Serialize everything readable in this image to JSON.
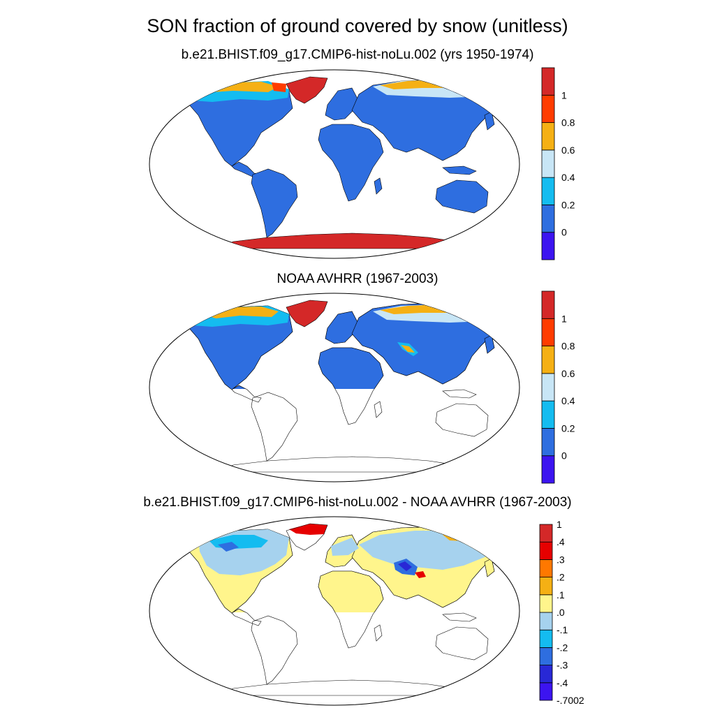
{
  "title": "SON fraction of ground covered by snow (unitless)",
  "panels": [
    {
      "title": "b.e21.BHIST.f09_g17.CMIP6-hist-noLu.002 (yrs 1950-1974)",
      "colorbar": {
        "colors": [
          "#3c14f0",
          "#2e6ee0",
          "#14bcf0",
          "#c8e6f6",
          "#f5b014",
          "#ff3c00",
          "#d42828"
        ],
        "labels": [
          "0",
          "0.2",
          "0.4",
          "0.6",
          "0.8",
          "1"
        ]
      }
    },
    {
      "title": "NOAA AVHRR (1967-2003)",
      "colorbar": {
        "colors": [
          "#3c14f0",
          "#2e6ee0",
          "#14bcf0",
          "#c8e6f6",
          "#f5b014",
          "#ff3c00",
          "#d42828"
        ],
        "labels": [
          "0",
          "0.2",
          "0.4",
          "0.6",
          "0.8",
          "1"
        ]
      }
    },
    {
      "title": "b.e21.BHIST.f09_g17.CMIP6-hist-noLu.002 - NOAA AVHRR (1967-2003)",
      "colorbar": {
        "colors": [
          "#3c14f0",
          "#2828d6",
          "#2e6ee0",
          "#14bcf0",
          "#a6d2ee",
          "#fff58c",
          "#f5b014",
          "#ff7800",
          "#e60000",
          "#d42828"
        ],
        "labels": [
          "-.7002",
          "-.4",
          "-.3",
          "-.2",
          "-.1",
          ".0",
          ".1",
          ".2",
          ".3",
          ".4",
          "1"
        ]
      }
    }
  ],
  "colors": {
    "land_model": "#2e6ee0",
    "land_diff": "#fff58c",
    "antarctica": "#d42828",
    "greenland": "#d42828"
  }
}
